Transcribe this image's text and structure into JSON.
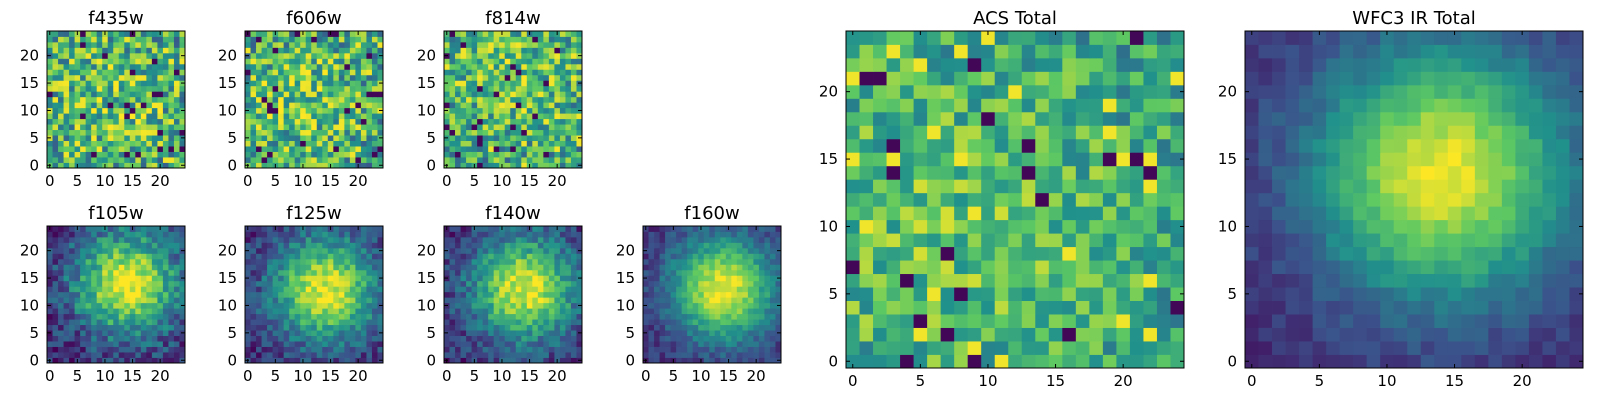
{
  "chart_data": [
    {
      "type": "heatmap",
      "title": "f435w",
      "size": 25,
      "texture": "noise",
      "peak": [
        12,
        12
      ],
      "noise": 1.0,
      "xticks": [
        0,
        5,
        10,
        15,
        20
      ],
      "yticks": [
        0,
        5,
        10,
        15,
        20
      ]
    },
    {
      "type": "heatmap",
      "title": "f606w",
      "size": 25,
      "texture": "noise",
      "peak": [
        10,
        12
      ],
      "noise": 1.0,
      "xticks": [
        0,
        5,
        10,
        15,
        20
      ],
      "yticks": [
        0,
        5,
        10,
        15,
        20
      ]
    },
    {
      "type": "heatmap",
      "title": "f814w",
      "size": 25,
      "texture": "noise",
      "peak": [
        12,
        16
      ],
      "noise": 0.9,
      "xticks": [
        0,
        5,
        10,
        15,
        20
      ],
      "yticks": [
        0,
        5,
        10,
        15,
        20
      ]
    },
    {
      "type": "heatmap",
      "title": "f105w",
      "size": 25,
      "texture": "blob",
      "peak": [
        14,
        14
      ],
      "noise": 0.35,
      "xticks": [
        0,
        5,
        10,
        15,
        20
      ],
      "yticks": [
        0,
        5,
        10,
        15,
        20
      ]
    },
    {
      "type": "heatmap",
      "title": "f125w",
      "size": 25,
      "texture": "blob",
      "peak": [
        14,
        13
      ],
      "noise": 0.3,
      "xticks": [
        0,
        5,
        10,
        15,
        20
      ],
      "yticks": [
        0,
        5,
        10,
        15,
        20
      ]
    },
    {
      "type": "heatmap",
      "title": "f140w",
      "size": 25,
      "texture": "blob",
      "peak": [
        14,
        13
      ],
      "noise": 0.3,
      "xticks": [
        0,
        5,
        10,
        15,
        20
      ],
      "yticks": [
        0,
        5,
        10,
        15,
        20
      ]
    },
    {
      "type": "heatmap",
      "title": "f160w",
      "size": 25,
      "texture": "blob",
      "peak": [
        14,
        13
      ],
      "noise": 0.2,
      "xticks": [
        0,
        5,
        10,
        15,
        20
      ],
      "yticks": [
        0,
        5,
        10,
        15,
        20
      ]
    },
    {
      "type": "heatmap",
      "title": "ACS Total",
      "size": 25,
      "texture": "noise",
      "peak": [
        8,
        10
      ],
      "noise": 0.7,
      "xticks": [
        0,
        5,
        10,
        15,
        20
      ],
      "yticks": [
        0,
        5,
        10,
        15,
        20
      ]
    },
    {
      "type": "heatmap",
      "title": "WFC3 IR Total",
      "size": 25,
      "texture": "blob",
      "peak": [
        14,
        14
      ],
      "noise": 0.12,
      "xticks": [
        0,
        5,
        10,
        15,
        20
      ],
      "yticks": [
        0,
        5,
        10,
        15,
        20
      ]
    }
  ],
  "colormap": [
    "#440154",
    "#3b528b",
    "#21918c",
    "#5ec962",
    "#fde725"
  ]
}
